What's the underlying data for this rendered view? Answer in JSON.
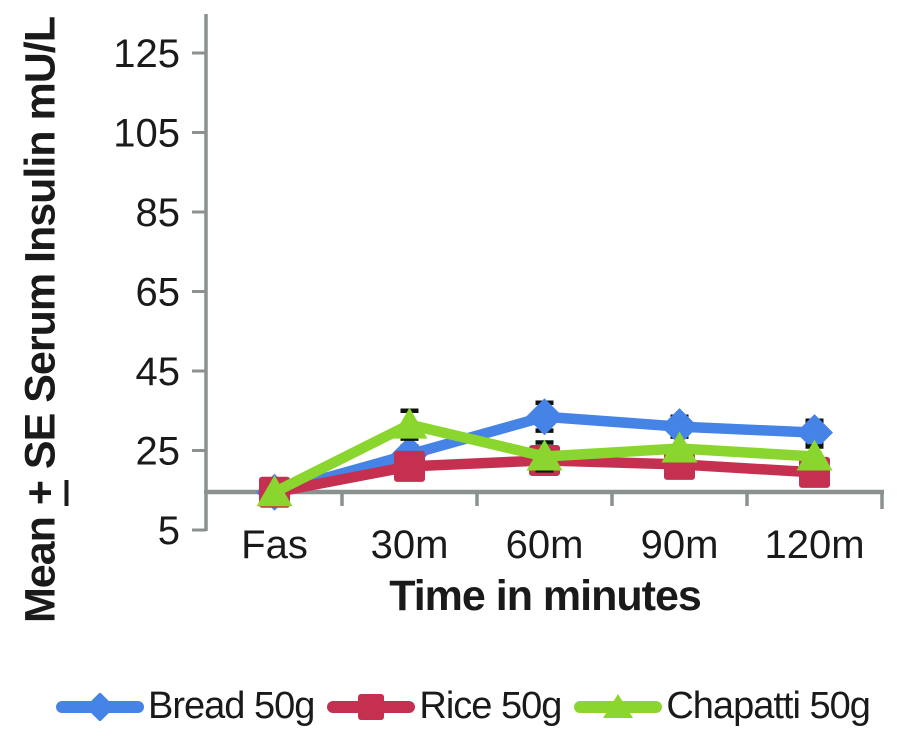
{
  "figure": {
    "y_axis_title_prefix": "Mean ",
    "y_axis_title_plus": "+",
    "y_axis_title_suffix": " SE Serum Insulin mU/L"
  },
  "colors": {
    "axis": "#8A918F",
    "text": "#1a1a1a",
    "error_bar": "#111111",
    "background": "#ffffff",
    "bread_blue": "#4583E6",
    "rice_red": "#C63050",
    "chapatti_green": "#8BD62E"
  },
  "chart_data": {
    "type": "line",
    "title": "",
    "xlabel": "Time in minutes",
    "ylabel": "Mean ± SE Serum Insulin mU/L",
    "categories": [
      "Fas",
      "30m",
      "60m",
      "90m",
      "120m"
    ],
    "y_ticks": [
      125,
      105,
      85,
      65,
      45,
      25,
      5
    ],
    "ylim": [
      5,
      135
    ],
    "grid": false,
    "legend_position": "bottom",
    "series": [
      {
        "name": "Bread 50g",
        "color": "#4583E6",
        "marker": "diamond",
        "values": [
          14.5,
          24,
          33.5,
          31,
          29.5
        ],
        "se": [
          0,
          2,
          3.5,
          2.5,
          3
        ]
      },
      {
        "name": "Rice 50g",
        "color": "#C63050",
        "marker": "square",
        "values": [
          14.5,
          21,
          22.5,
          21.5,
          19.5
        ],
        "se": [
          0,
          0,
          0,
          0,
          0
        ]
      },
      {
        "name": "Chapatti 50g",
        "color": "#8BD62E",
        "marker": "triangle",
        "values": [
          14.5,
          31.5,
          23.5,
          25.5,
          23.5
        ],
        "se": [
          0,
          3.5,
          3.5,
          0,
          2.5
        ]
      }
    ]
  }
}
